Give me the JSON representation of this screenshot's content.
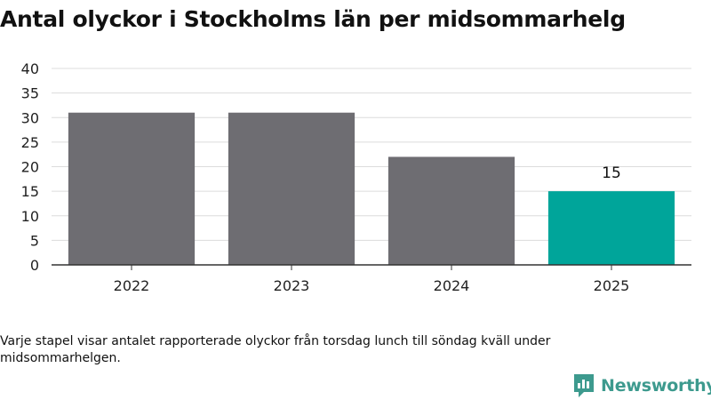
{
  "title": "Antal olyckor i Stockholms län per midsommarhelg",
  "footnote": "Varje stapel visar antalet rapporterade olyckor från torsdag lunch till söndag kväll under midsommarhelgen.",
  "brand": {
    "name": "Newsworthy",
    "icon": "newsworthy-logo-icon",
    "color": "#3d9a8e"
  },
  "chart_data": {
    "type": "bar",
    "categories": [
      "2022",
      "2023",
      "2024",
      "2025"
    ],
    "values": [
      31,
      31,
      22,
      15
    ],
    "data_labels": [
      null,
      null,
      null,
      "15"
    ],
    "bar_colors": [
      "#6e6d72",
      "#6e6d72",
      "#6e6d72",
      "#00a59a"
    ],
    "ylim": [
      0,
      40
    ],
    "yticks": [
      0,
      5,
      10,
      15,
      20,
      25,
      30,
      35,
      40
    ],
    "grid": true,
    "legend": "none"
  }
}
